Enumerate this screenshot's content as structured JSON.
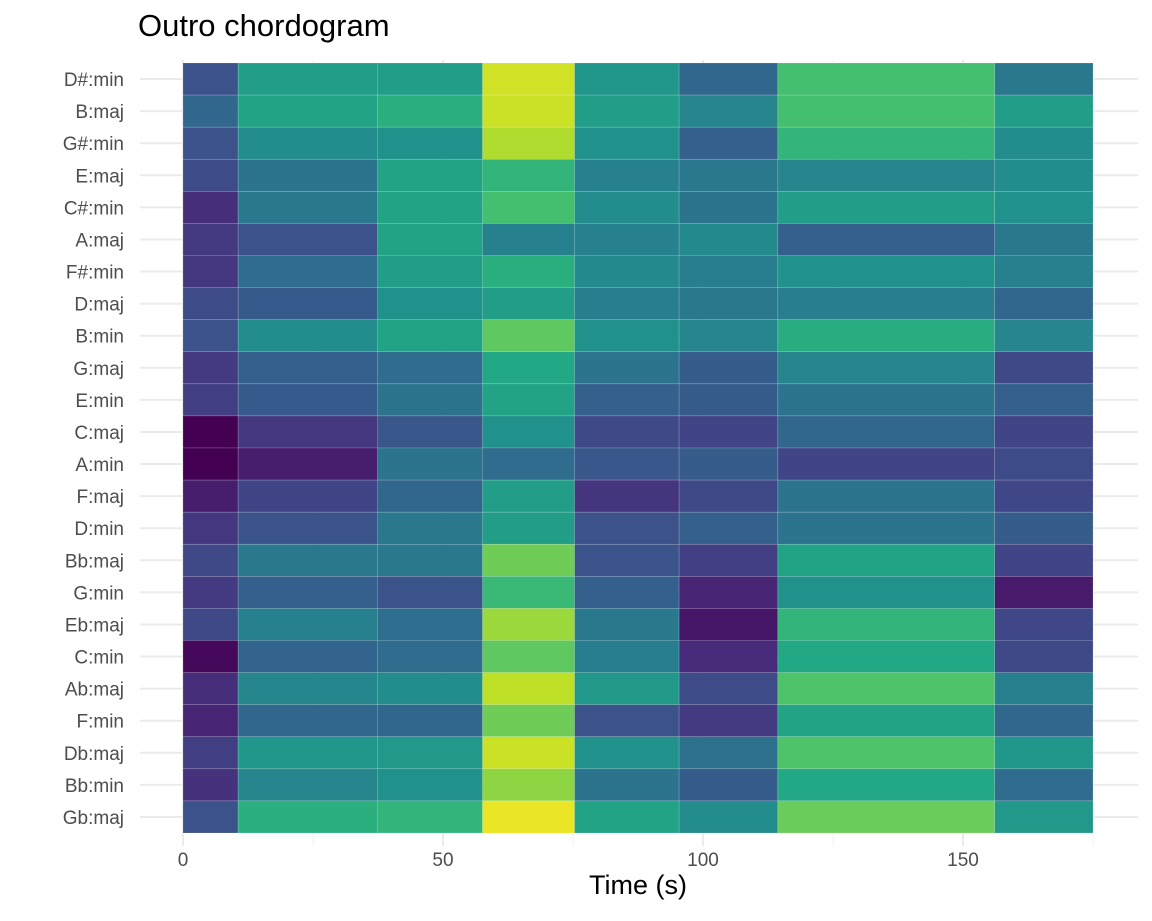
{
  "chart_data": {
    "type": "heatmap",
    "title": "Outro chordogram",
    "xlabel": "Time (s)",
    "ylabel": "",
    "xlim": [
      0,
      175
    ],
    "x_ticks": [
      0,
      50,
      100,
      150
    ],
    "x_tick_labels": [
      "0",
      "50",
      "100",
      "150"
    ],
    "segments": [
      {
        "start": 0,
        "end": 10.6
      },
      {
        "start": 10.6,
        "end": 37.4
      },
      {
        "start": 37.4,
        "end": 57.6
      },
      {
        "start": 57.6,
        "end": 75.3
      },
      {
        "start": 75.3,
        "end": 95.4
      },
      {
        "start": 95.4,
        "end": 114.4
      },
      {
        "start": 114.4,
        "end": 156.1
      },
      {
        "start": 156.1,
        "end": 175
      }
    ],
    "chords": [
      "D#:min",
      "B:maj",
      "G#:min",
      "E:maj",
      "C#:min",
      "A:maj",
      "F#:min",
      "D:maj",
      "B:min",
      "G:maj",
      "E:min",
      "C:maj",
      "A:min",
      "F:maj",
      "D:min",
      "Bb:maj",
      "G:min",
      "Eb:maj",
      "C:min",
      "Ab:maj",
      "F:min",
      "Db:maj",
      "Bb:min",
      "Gb:maj"
    ],
    "colormap": "viridis",
    "values": [
      [
        0.25,
        0.55,
        0.55,
        0.93,
        0.52,
        0.33,
        0.7,
        0.4
      ],
      [
        0.33,
        0.58,
        0.63,
        0.92,
        0.55,
        0.45,
        0.7,
        0.55
      ],
      [
        0.25,
        0.48,
        0.5,
        0.88,
        0.5,
        0.3,
        0.65,
        0.48
      ],
      [
        0.23,
        0.38,
        0.58,
        0.65,
        0.43,
        0.4,
        0.45,
        0.48
      ],
      [
        0.13,
        0.4,
        0.58,
        0.7,
        0.48,
        0.38,
        0.55,
        0.5
      ],
      [
        0.17,
        0.25,
        0.58,
        0.43,
        0.43,
        0.47,
        0.3,
        0.4
      ],
      [
        0.16,
        0.35,
        0.55,
        0.63,
        0.47,
        0.42,
        0.5,
        0.43
      ],
      [
        0.23,
        0.28,
        0.5,
        0.55,
        0.42,
        0.4,
        0.42,
        0.33
      ],
      [
        0.25,
        0.48,
        0.58,
        0.75,
        0.5,
        0.45,
        0.62,
        0.45
      ],
      [
        0.17,
        0.3,
        0.35,
        0.6,
        0.38,
        0.29,
        0.45,
        0.22
      ],
      [
        0.18,
        0.28,
        0.38,
        0.58,
        0.3,
        0.29,
        0.38,
        0.3
      ],
      [
        0.0,
        0.16,
        0.27,
        0.5,
        0.22,
        0.2,
        0.33,
        0.2
      ],
      [
        0.0,
        0.08,
        0.38,
        0.35,
        0.27,
        0.29,
        0.2,
        0.23
      ],
      [
        0.08,
        0.2,
        0.33,
        0.55,
        0.15,
        0.22,
        0.38,
        0.21
      ],
      [
        0.16,
        0.26,
        0.4,
        0.55,
        0.25,
        0.3,
        0.38,
        0.29
      ],
      [
        0.22,
        0.4,
        0.4,
        0.78,
        0.26,
        0.18,
        0.58,
        0.2
      ],
      [
        0.17,
        0.3,
        0.26,
        0.67,
        0.3,
        0.1,
        0.5,
        0.07
      ],
      [
        0.22,
        0.43,
        0.36,
        0.85,
        0.4,
        0.06,
        0.65,
        0.21
      ],
      [
        0.02,
        0.32,
        0.35,
        0.75,
        0.42,
        0.12,
        0.6,
        0.22
      ],
      [
        0.13,
        0.46,
        0.48,
        0.9,
        0.53,
        0.23,
        0.72,
        0.43
      ],
      [
        0.1,
        0.33,
        0.33,
        0.78,
        0.25,
        0.17,
        0.58,
        0.33
      ],
      [
        0.18,
        0.52,
        0.53,
        0.92,
        0.5,
        0.37,
        0.72,
        0.52
      ],
      [
        0.14,
        0.45,
        0.5,
        0.83,
        0.38,
        0.29,
        0.6,
        0.35
      ],
      [
        0.25,
        0.63,
        0.65,
        0.97,
        0.58,
        0.48,
        0.77,
        0.53
      ]
    ],
    "grid": true,
    "legend": "none"
  }
}
